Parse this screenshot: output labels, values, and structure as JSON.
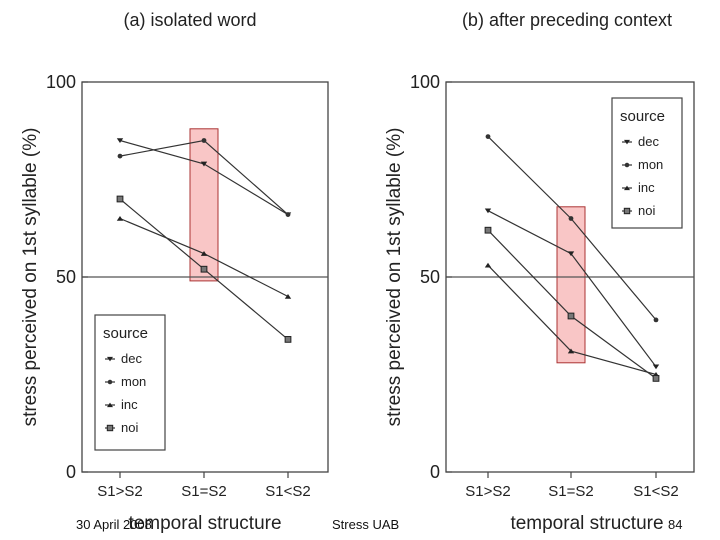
{
  "chart_data": [
    {
      "type": "line",
      "title": "(a) isolated word",
      "xlabel": "temporal structure",
      "ylabel": "stress perceived on 1st syllable (%)",
      "categories": [
        "S1>S2",
        "S1=S2",
        "S1<S2"
      ],
      "ylim": [
        0,
        100
      ],
      "yticks": [
        "0",
        "50",
        "100"
      ],
      "reference_line": 50,
      "legend": {
        "title": "source",
        "position": "bottom-left"
      },
      "highlight_category": "S1=S2",
      "highlight_range": [
        49,
        88
      ],
      "series": [
        {
          "name": "dec",
          "marker": "down-triangle",
          "values": [
            85,
            79,
            66
          ]
        },
        {
          "name": "mon",
          "marker": "circle",
          "values": [
            81,
            85,
            66
          ]
        },
        {
          "name": "inc",
          "marker": "up-triangle",
          "values": [
            65,
            56,
            45
          ]
        },
        {
          "name": "noi",
          "marker": "square",
          "values": [
            70,
            52,
            34
          ]
        }
      ]
    },
    {
      "type": "line",
      "title": "(b) after preceding context",
      "xlabel": "temporal structure",
      "ylabel": "stress perceived on 1st syllable (%)",
      "categories": [
        "S1>S2",
        "S1=S2",
        "S1<S2"
      ],
      "ylim": [
        0,
        100
      ],
      "yticks": [
        "0",
        "50",
        "100"
      ],
      "reference_line": 50,
      "legend": {
        "title": "source",
        "position": "top-right"
      },
      "highlight_category": "S1=S2",
      "highlight_range": [
        28,
        68
      ],
      "series": [
        {
          "name": "dec",
          "marker": "down-triangle",
          "values": [
            67,
            56,
            27
          ]
        },
        {
          "name": "mon",
          "marker": "circle",
          "values": [
            86,
            65,
            39
          ]
        },
        {
          "name": "inc",
          "marker": "up-triangle",
          "values": [
            53,
            31,
            25
          ]
        },
        {
          "name": "noi",
          "marker": "square",
          "values": [
            62,
            40,
            24
          ]
        }
      ]
    }
  ],
  "footer": {
    "date": "30 April 2008",
    "center": "Stress UAB",
    "page": "84"
  }
}
